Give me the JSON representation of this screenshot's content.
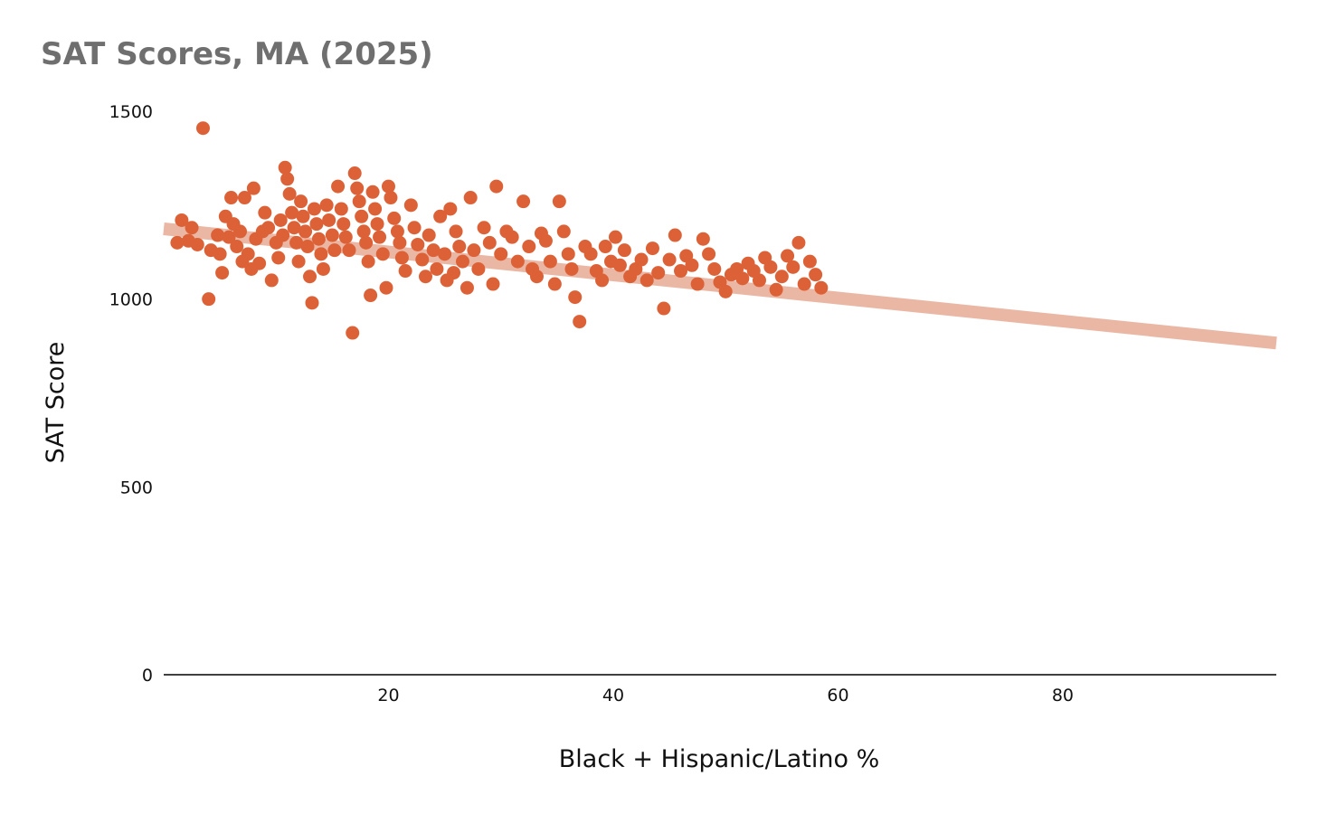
{
  "chart_data": {
    "type": "scatter",
    "title": "SAT Scores, MA (2025)",
    "xlabel": "Black + Hispanic/Latino %",
    "ylabel": "SAT Score",
    "xlim": [
      0,
      99
    ],
    "ylim": [
      0,
      1500
    ],
    "xticks": [
      20,
      40,
      60,
      80
    ],
    "yticks": [
      0,
      500,
      1000,
      1500
    ],
    "grid": false,
    "legend": "none",
    "colors": {
      "points": "#dd6137",
      "trendline": "#ebb7a5",
      "axis": "#000000"
    },
    "trendline": {
      "x": [
        0,
        99
      ],
      "y": [
        1187,
        883
      ]
    },
    "series": [
      {
        "values": [
          [
            1.2,
            1150
          ],
          [
            1.6,
            1210
          ],
          [
            2.2,
            1155
          ],
          [
            2.5,
            1190
          ],
          [
            3,
            1145
          ],
          [
            3.5,
            1455
          ],
          [
            4,
            1000
          ],
          [
            4.2,
            1130
          ],
          [
            4.8,
            1170
          ],
          [
            5,
            1120
          ],
          [
            5.2,
            1070
          ],
          [
            5.5,
            1220
          ],
          [
            5.8,
            1165
          ],
          [
            6,
            1270
          ],
          [
            6.2,
            1200
          ],
          [
            6.5,
            1140
          ],
          [
            6.8,
            1180
          ],
          [
            7,
            1100
          ],
          [
            7.2,
            1270
          ],
          [
            7.5,
            1120
          ],
          [
            7.8,
            1080
          ],
          [
            8,
            1295
          ],
          [
            8.2,
            1160
          ],
          [
            8.5,
            1095
          ],
          [
            8.8,
            1180
          ],
          [
            9,
            1230
          ],
          [
            9.3,
            1190
          ],
          [
            9.6,
            1050
          ],
          [
            10,
            1150
          ],
          [
            10.2,
            1110
          ],
          [
            10.4,
            1210
          ],
          [
            10.6,
            1170
          ],
          [
            10.8,
            1350
          ],
          [
            11,
            1320
          ],
          [
            11.2,
            1280
          ],
          [
            11.4,
            1230
          ],
          [
            11.6,
            1190
          ],
          [
            11.8,
            1150
          ],
          [
            12,
            1100
          ],
          [
            12.2,
            1260
          ],
          [
            12.4,
            1220
          ],
          [
            12.6,
            1180
          ],
          [
            12.8,
            1140
          ],
          [
            13,
            1060
          ],
          [
            13.2,
            990
          ],
          [
            13.4,
            1240
          ],
          [
            13.6,
            1200
          ],
          [
            13.8,
            1160
          ],
          [
            14,
            1120
          ],
          [
            14.2,
            1080
          ],
          [
            14.5,
            1250
          ],
          [
            14.7,
            1210
          ],
          [
            15,
            1170
          ],
          [
            15.2,
            1130
          ],
          [
            15.5,
            1300
          ],
          [
            15.8,
            1240
          ],
          [
            16,
            1200
          ],
          [
            16.2,
            1165
          ],
          [
            16.5,
            1130
          ],
          [
            16.8,
            910
          ],
          [
            17,
            1335
          ],
          [
            17.2,
            1295
          ],
          [
            17.4,
            1260
          ],
          [
            17.6,
            1220
          ],
          [
            17.8,
            1180
          ],
          [
            18,
            1150
          ],
          [
            18.2,
            1100
          ],
          [
            18.4,
            1010
          ],
          [
            18.6,
            1285
          ],
          [
            18.8,
            1240
          ],
          [
            19,
            1200
          ],
          [
            19.2,
            1165
          ],
          [
            19.5,
            1120
          ],
          [
            19.8,
            1030
          ],
          [
            20,
            1300
          ],
          [
            20.2,
            1270
          ],
          [
            20.5,
            1215
          ],
          [
            20.8,
            1180
          ],
          [
            21,
            1150
          ],
          [
            21.2,
            1110
          ],
          [
            21.5,
            1075
          ],
          [
            22,
            1250
          ],
          [
            22.3,
            1190
          ],
          [
            22.6,
            1145
          ],
          [
            23,
            1105
          ],
          [
            23.3,
            1060
          ],
          [
            23.6,
            1170
          ],
          [
            24,
            1130
          ],
          [
            24.3,
            1080
          ],
          [
            24.6,
            1220
          ],
          [
            25,
            1120
          ],
          [
            25.2,
            1050
          ],
          [
            25.5,
            1240
          ],
          [
            25.8,
            1070
          ],
          [
            26,
            1180
          ],
          [
            26.3,
            1140
          ],
          [
            26.6,
            1100
          ],
          [
            27,
            1030
          ],
          [
            27.3,
            1270
          ],
          [
            27.6,
            1130
          ],
          [
            28,
            1080
          ],
          [
            28.5,
            1190
          ],
          [
            29,
            1150
          ],
          [
            29.3,
            1040
          ],
          [
            29.6,
            1300
          ],
          [
            30,
            1120
          ],
          [
            30.5,
            1180
          ],
          [
            31,
            1165
          ],
          [
            31.5,
            1100
          ],
          [
            32,
            1260
          ],
          [
            32.5,
            1140
          ],
          [
            32.8,
            1080
          ],
          [
            33.2,
            1060
          ],
          [
            33.6,
            1175
          ],
          [
            34,
            1155
          ],
          [
            34.4,
            1100
          ],
          [
            34.8,
            1040
          ],
          [
            35.2,
            1260
          ],
          [
            35.6,
            1180
          ],
          [
            36,
            1120
          ],
          [
            36.3,
            1080
          ],
          [
            36.6,
            1005
          ],
          [
            37,
            940
          ],
          [
            37.5,
            1140
          ],
          [
            38,
            1120
          ],
          [
            38.5,
            1075
          ],
          [
            39,
            1050
          ],
          [
            39.3,
            1140
          ],
          [
            39.8,
            1100
          ],
          [
            40.2,
            1165
          ],
          [
            40.6,
            1090
          ],
          [
            41,
            1130
          ],
          [
            41.5,
            1060
          ],
          [
            42,
            1080
          ],
          [
            42.5,
            1105
          ],
          [
            43,
            1050
          ],
          [
            43.5,
            1135
          ],
          [
            44,
            1070
          ],
          [
            44.5,
            975
          ],
          [
            45,
            1105
          ],
          [
            45.5,
            1170
          ],
          [
            46,
            1075
          ],
          [
            46.5,
            1115
          ],
          [
            47,
            1090
          ],
          [
            47.5,
            1040
          ],
          [
            48,
            1160
          ],
          [
            48.5,
            1120
          ],
          [
            49,
            1080
          ],
          [
            49.5,
            1045
          ],
          [
            50,
            1020
          ],
          [
            50.5,
            1065
          ],
          [
            51,
            1080
          ],
          [
            51.5,
            1055
          ],
          [
            52,
            1095
          ],
          [
            52.5,
            1075
          ],
          [
            53,
            1050
          ],
          [
            53.5,
            1110
          ],
          [
            54,
            1085
          ],
          [
            54.5,
            1025
          ],
          [
            55,
            1060
          ],
          [
            55.5,
            1115
          ],
          [
            56,
            1085
          ],
          [
            56.5,
            1150
          ],
          [
            57,
            1040
          ],
          [
            57.5,
            1100
          ],
          [
            58,
            1065
          ],
          [
            58.5,
            1030
          ]
        ]
      }
    ]
  }
}
